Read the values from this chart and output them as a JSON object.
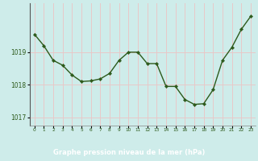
{
  "x": [
    0,
    1,
    2,
    3,
    4,
    5,
    6,
    7,
    8,
    9,
    10,
    11,
    12,
    13,
    14,
    15,
    16,
    17,
    18,
    19,
    20,
    21,
    22,
    23
  ],
  "y": [
    1019.55,
    1019.2,
    1018.75,
    1018.6,
    1018.3,
    1018.1,
    1018.12,
    1018.18,
    1018.35,
    1018.75,
    1019.0,
    1019.0,
    1018.65,
    1018.65,
    1017.95,
    1017.95,
    1017.55,
    1017.4,
    1017.42,
    1017.85,
    1018.75,
    1019.15,
    1019.7,
    1020.1
  ],
  "line_color": "#2d5a1b",
  "marker_color": "#2d5a1b",
  "bg_color": "#ceecea",
  "grid_color": "#e8c8c8",
  "xlabel": "Graphe pression niveau de la mer (hPa)",
  "xlabel_color": "#1a3a0a",
  "tick_label_color": "#2d5a1b",
  "ytick_label_color": "#2d5a1b",
  "yticks": [
    1017,
    1018,
    1019
  ],
  "ylim": [
    1016.75,
    1020.5
  ],
  "xlim": [
    -0.5,
    23.5
  ],
  "bottom_bar_color": "#2d5a1b",
  "bottom_bar_text_color": "#ffffff",
  "spine_color": "#888888",
  "left_spine_color": "#555555"
}
